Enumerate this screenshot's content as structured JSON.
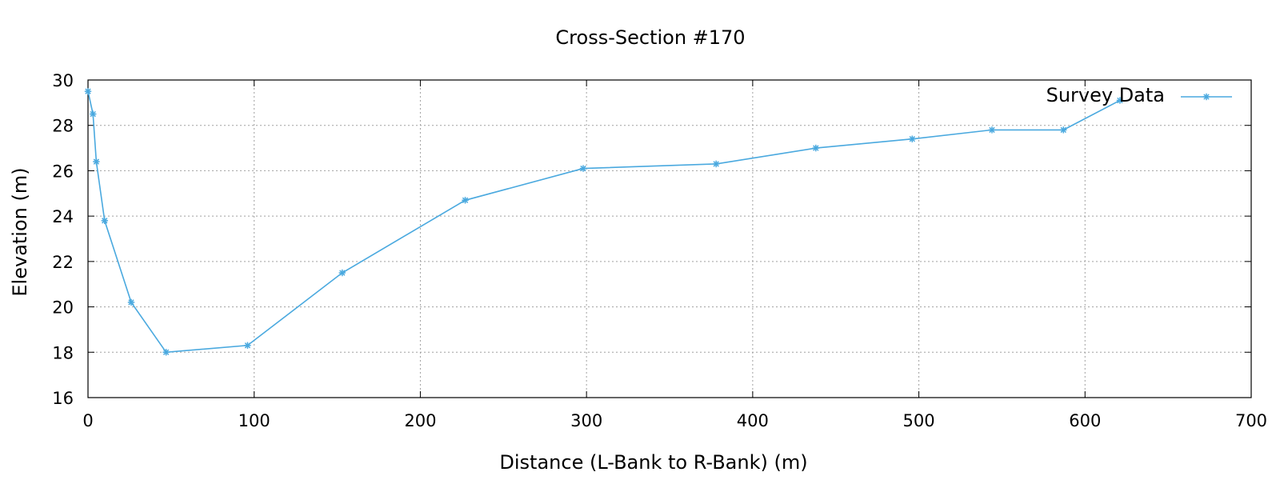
{
  "chart_data": {
    "type": "line",
    "title": "Cross-Section #170",
    "xlabel": "Distance (L-Bank to R-Bank) (m)",
    "ylabel": "Elevation (m)",
    "xlim": [
      0,
      700
    ],
    "ylim": [
      16,
      30
    ],
    "xticks": [
      0,
      100,
      200,
      300,
      400,
      500,
      600,
      700
    ],
    "yticks": [
      16,
      18,
      20,
      22,
      24,
      26,
      28,
      30
    ],
    "grid": true,
    "legend": "top-right",
    "series": [
      {
        "name": "Survey Data",
        "color": "#4aa9df",
        "marker": "asterisk",
        "x": [
          0,
          3,
          5,
          10,
          26,
          47,
          96,
          153,
          227,
          298,
          378,
          438,
          496,
          544,
          587,
          621
        ],
        "y": [
          29.5,
          28.5,
          26.4,
          23.8,
          20.2,
          18.0,
          18.3,
          21.5,
          24.7,
          26.1,
          26.3,
          27.0,
          27.4,
          27.8,
          27.8,
          29.1
        ]
      }
    ]
  }
}
